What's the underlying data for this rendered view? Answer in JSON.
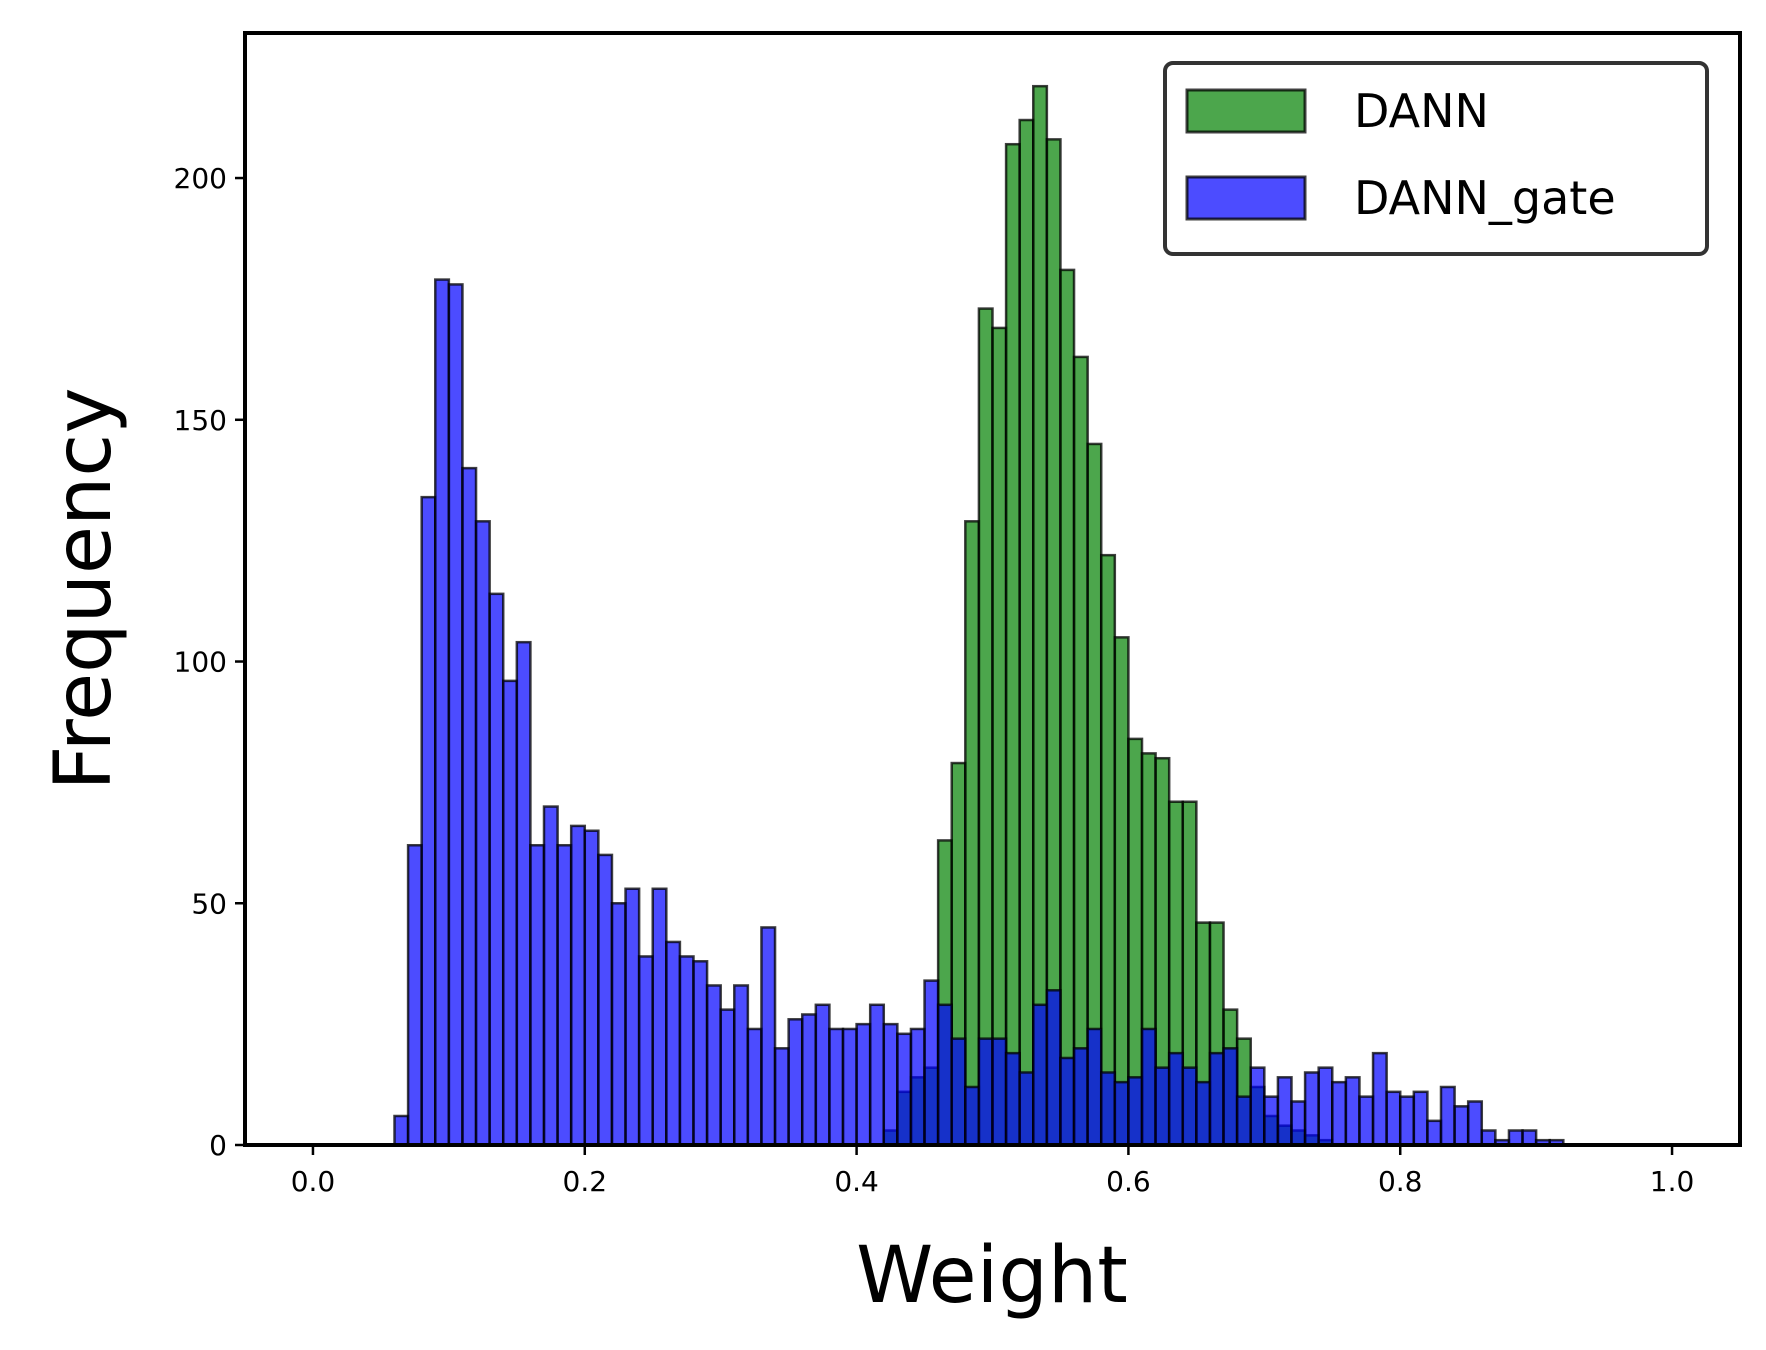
{
  "chart_data": {
    "type": "bar",
    "xlabel": "Weight",
    "ylabel": "Frequency",
    "xlim": [
      -0.05,
      1.05
    ],
    "ylim": [
      0,
      230
    ],
    "bin_start": 0.06,
    "bin_width": 0.01,
    "xticks": [
      "0.0",
      "0.2",
      "0.4",
      "0.6",
      "0.8",
      "1.0"
    ],
    "yticks": [
      "0",
      "50",
      "100",
      "150",
      "200"
    ],
    "grid": false,
    "legend": "top-right",
    "series": [
      {
        "name": "DANN",
        "color": "#008000",
        "values": [
          0,
          0,
          0,
          0,
          0,
          0,
          0,
          0,
          0,
          0,
          0,
          0,
          0,
          0,
          0,
          0,
          0,
          0,
          0,
          0,
          0,
          0,
          0,
          0,
          0,
          0,
          0,
          0,
          0,
          0,
          0,
          0,
          0,
          0,
          0,
          0,
          3,
          11,
          14,
          16,
          63,
          79,
          129,
          173,
          169,
          207,
          212,
          219,
          208,
          181,
          163,
          145,
          122,
          105,
          84,
          81,
          80,
          71,
          71,
          46,
          46,
          28,
          22,
          12,
          6,
          4,
          3,
          2,
          1,
          0,
          0,
          0,
          0,
          0,
          0,
          0,
          0,
          0,
          0,
          0,
          0,
          0,
          0,
          0
        ]
      },
      {
        "name": "DANN_gate",
        "color": "#0000ff",
        "values": [
          6,
          62,
          134,
          179,
          178,
          140,
          129,
          114,
          96,
          104,
          62,
          70,
          62,
          66,
          65,
          60,
          50,
          53,
          39,
          53,
          42,
          39,
          38,
          33,
          28,
          33,
          24,
          45,
          20,
          26,
          27,
          29,
          24,
          24,
          25,
          29,
          25,
          23,
          24,
          34,
          29,
          22,
          12,
          22,
          22,
          19,
          15,
          29,
          32,
          18,
          20,
          24,
          15,
          13,
          14,
          24,
          16,
          19,
          16,
          13,
          19,
          20,
          10,
          16,
          10,
          14,
          9,
          15,
          16,
          13,
          14,
          10,
          19,
          11,
          10,
          11,
          5,
          12,
          8,
          9,
          3,
          1,
          3,
          3,
          1,
          1
        ]
      }
    ]
  }
}
